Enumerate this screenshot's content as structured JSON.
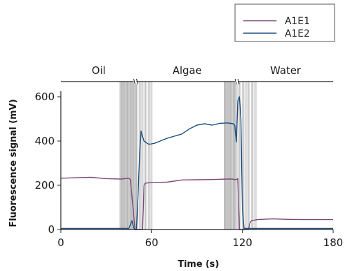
{
  "chart_data": {
    "type": "line",
    "xlabel": "Time (s)",
    "ylabel": "Fluorescence signal (mV)",
    "xlim": [
      0,
      180
    ],
    "ylim": [
      0,
      600
    ],
    "x_ticks": [
      0,
      60,
      120,
      180
    ],
    "y_ticks": [
      0,
      200,
      400,
      600
    ],
    "grid": false,
    "legend_position": "top-right",
    "phases": [
      {
        "label": "Oil",
        "x_start": 0,
        "x_end": 50
      },
      {
        "label": "Algae",
        "x_start": 50,
        "x_end": 117
      },
      {
        "label": "Water",
        "x_start": 117,
        "x_end": 180
      }
    ],
    "transition_zones": [
      {
        "x_start": 39,
        "x_end": 61,
        "dense_until": 50
      },
      {
        "x_start": 108,
        "x_end": 130,
        "dense_until": 116
      }
    ],
    "series": [
      {
        "name": "A1E1",
        "color": "#7b4a79",
        "x": [
          0,
          10,
          20,
          30,
          40,
          45,
          46,
          49,
          50,
          51,
          54,
          55,
          56,
          60,
          70,
          80,
          90,
          100,
          110,
          113,
          115,
          116,
          117,
          118,
          119,
          120,
          122,
          124,
          125,
          126,
          130,
          140,
          150,
          160,
          170,
          180
        ],
        "y": [
          232,
          234,
          236,
          230,
          228,
          232,
          226,
          0,
          0,
          0,
          0,
          200,
          210,
          212,
          214,
          224,
          225,
          226,
          228,
          228,
          226,
          226,
          230,
          0,
          0,
          0,
          0,
          2,
          30,
          40,
          45,
          48,
          46,
          45,
          45,
          45
        ]
      },
      {
        "name": "A1E2",
        "color": "#1d4e7e",
        "x": [
          0,
          10,
          20,
          30,
          40,
          44,
          45,
          47,
          48,
          49,
          50,
          51,
          52,
          53,
          54,
          55,
          57,
          58,
          59,
          62,
          65,
          70,
          75,
          80,
          85,
          90,
          95,
          100,
          105,
          110,
          114,
          115,
          116,
          117,
          118,
          119,
          120,
          121,
          123,
          130,
          140,
          160,
          180
        ],
        "y": [
          5,
          5,
          5,
          5,
          5,
          5,
          5,
          40,
          10,
          0,
          0,
          150,
          320,
          445,
          420,
          400,
          390,
          386,
          386,
          390,
          398,
          412,
          422,
          432,
          455,
          472,
          478,
          472,
          480,
          482,
          478,
          470,
          396,
          580,
          600,
          500,
          100,
          5,
          5,
          5,
          5,
          5,
          5
        ]
      }
    ]
  }
}
